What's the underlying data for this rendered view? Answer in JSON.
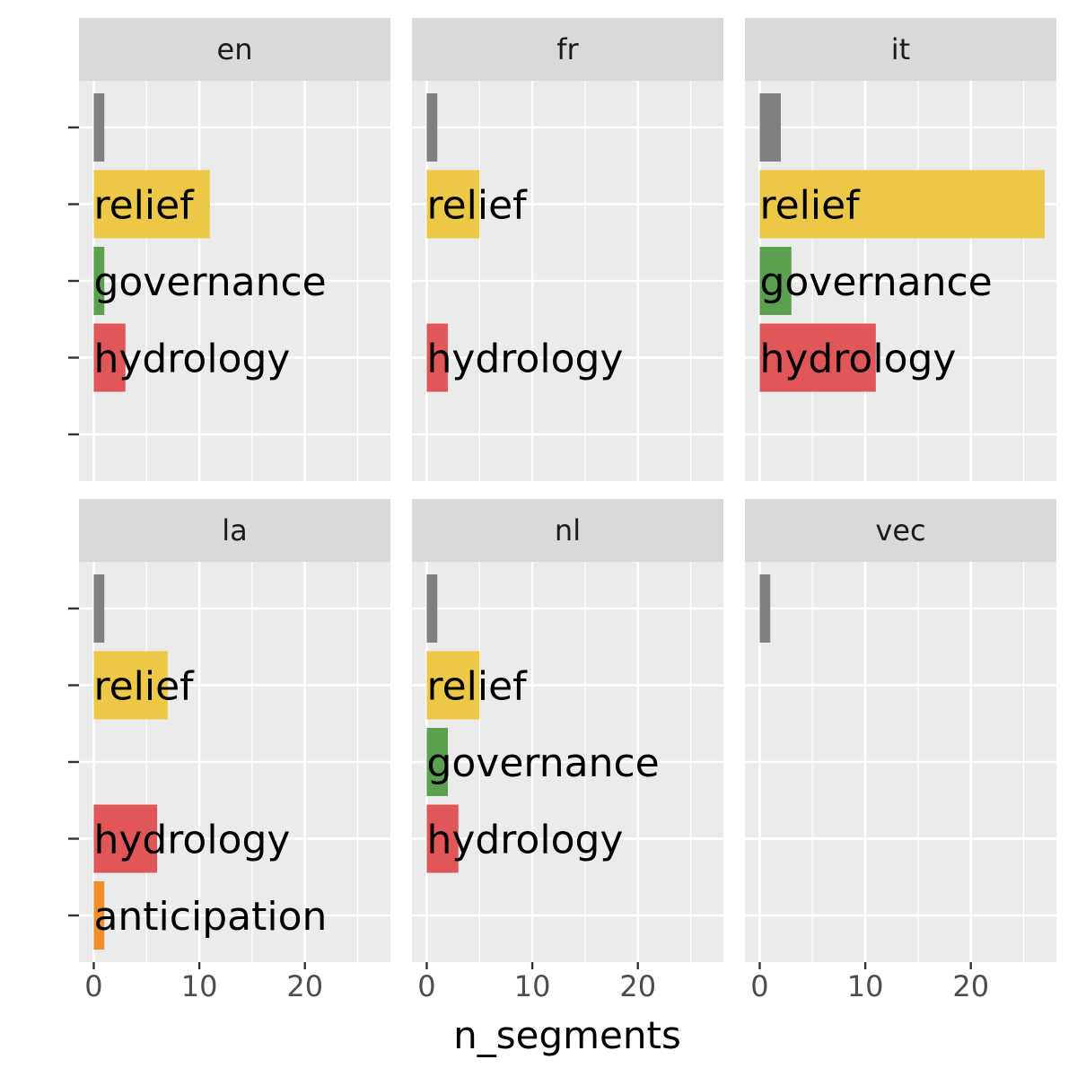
{
  "chart_data": {
    "type": "bar",
    "orientation": "horizontal",
    "facets": [
      "en",
      "fr",
      "it",
      "la",
      "nl",
      "vec"
    ],
    "categories": [
      "",
      "relief",
      "governance",
      "hydrology",
      "anticipation"
    ],
    "category_colors": {
      "": "#808080",
      "relief": "#ECC846",
      "governance": "#5BA04F",
      "hydrology": "#E15759",
      "anticipation": "#F28E2B"
    },
    "panels": [
      {
        "facet": "en",
        "bars": [
          {
            "category": "",
            "value": 1
          },
          {
            "category": "relief",
            "value": 11
          },
          {
            "category": "governance",
            "value": 1
          },
          {
            "category": "hydrology",
            "value": 3
          }
        ]
      },
      {
        "facet": "fr",
        "bars": [
          {
            "category": "",
            "value": 1
          },
          {
            "category": "relief",
            "value": 5
          },
          {
            "category": "hydrology",
            "value": 2
          }
        ]
      },
      {
        "facet": "it",
        "bars": [
          {
            "category": "",
            "value": 2
          },
          {
            "category": "relief",
            "value": 27
          },
          {
            "category": "governance",
            "value": 3
          },
          {
            "category": "hydrology",
            "value": 11
          }
        ]
      },
      {
        "facet": "la",
        "bars": [
          {
            "category": "",
            "value": 1
          },
          {
            "category": "relief",
            "value": 7
          },
          {
            "category": "hydrology",
            "value": 6
          },
          {
            "category": "anticipation",
            "value": 1
          }
        ]
      },
      {
        "facet": "nl",
        "bars": [
          {
            "category": "",
            "value": 1
          },
          {
            "category": "relief",
            "value": 5
          },
          {
            "category": "governance",
            "value": 2
          },
          {
            "category": "hydrology",
            "value": 3
          }
        ]
      },
      {
        "facet": "vec",
        "bars": [
          {
            "category": "",
            "value": 1
          }
        ]
      }
    ],
    "xlabel": "n_segments",
    "ylabel": "",
    "xlim": [
      -1.4,
      28.1
    ],
    "xticks": [
      0,
      10,
      20
    ],
    "grid": true,
    "legend": "none"
  }
}
